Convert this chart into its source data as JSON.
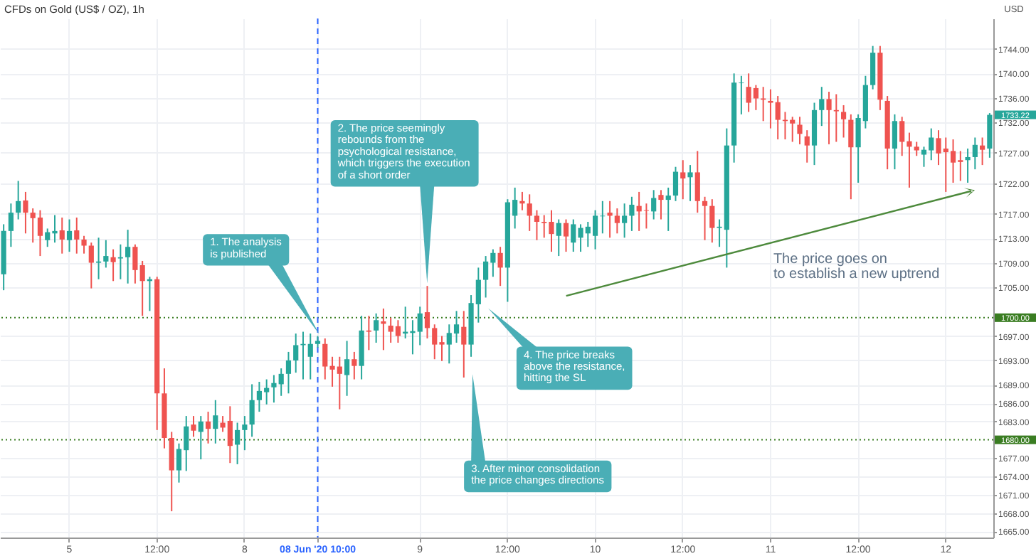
{
  "chart_data": {
    "type": "candlestick",
    "title": "CFDs on Gold (US$ / OZ), 1h",
    "ylabel": "USD",
    "categories": [
      null,
      null,
      null,
      null,
      null,
      null,
      null,
      null,
      null,
      "5",
      null,
      null,
      null,
      null,
      null,
      null,
      null,
      null,
      null,
      null,
      null,
      "12:00",
      null,
      null,
      null,
      null,
      null,
      null,
      null,
      null,
      null,
      null,
      null,
      "8",
      null,
      null,
      null,
      null,
      null,
      null,
      null,
      null,
      null,
      "08 Jun '20  10:00",
      null,
      null,
      null,
      null,
      null,
      null,
      null,
      null,
      null,
      null,
      null,
      null,
      null,
      "9",
      null,
      null,
      null,
      null,
      null,
      null,
      null,
      null,
      null,
      null,
      null,
      "12:00",
      null,
      null,
      null,
      null,
      null,
      null,
      null,
      null,
      null,
      null,
      null,
      "10",
      null,
      null,
      null,
      null,
      null,
      null,
      null,
      null,
      null,
      null,
      null,
      "12:00",
      null,
      null,
      null,
      null,
      null,
      null,
      null,
      null,
      null,
      null,
      null,
      "11",
      null,
      null,
      null,
      null,
      null,
      null,
      null,
      null,
      null,
      null,
      null,
      "12:00",
      null,
      null,
      null,
      null,
      null,
      null,
      null,
      null,
      null,
      null,
      null,
      "12",
      null,
      null,
      null,
      null,
      null,
      null
    ],
    "ohlc": [
      [
        1707.1,
        1715.3,
        1704.5,
        1714.2
      ],
      [
        1714.2,
        1718.7,
        1711.6,
        1717.2
      ],
      [
        1717.2,
        1722.4,
        1716.1,
        1719.1
      ],
      [
        1719.2,
        1720.6,
        1713.8,
        1717.2
      ],
      [
        1717.2,
        1717.9,
        1712.3,
        1716.3
      ],
      [
        1716.4,
        1717.6,
        1710.1,
        1713.4
      ],
      [
        1712.7,
        1714.6,
        1711.6,
        1714.0
      ],
      [
        1713.8,
        1716.8,
        1712.3,
        1714.2
      ],
      [
        1714.3,
        1716.4,
        1710.5,
        1712.8
      ],
      [
        1712.7,
        1716.1,
        1710.8,
        1714.2
      ],
      [
        1714.3,
        1716.4,
        1710.5,
        1712.8
      ],
      [
        1712.8,
        1713.4,
        1710.5,
        1711.8
      ],
      [
        1711.8,
        1712.3,
        1704.8,
        1709.0
      ],
      [
        1709.0,
        1713.1,
        1706.3,
        1709.2
      ],
      [
        1709.2,
        1712.7,
        1708.2,
        1710.1
      ],
      [
        1709.9,
        1711.2,
        1706.0,
        1709.1
      ],
      [
        1709.7,
        1712.0,
        1706.3,
        1709.9
      ],
      [
        1709.9,
        1714.4,
        1705.6,
        1711.6
      ],
      [
        1711.6,
        1712.0,
        1705.6,
        1707.8
      ],
      [
        1708.6,
        1709.3,
        1700.3,
        1706.0
      ],
      [
        1706.0,
        1706.7,
        1701.1,
        1706.3
      ],
      [
        1706.3,
        1706.7,
        1681.6,
        1687.6
      ],
      [
        1687.6,
        1691.7,
        1678.6,
        1680.3
      ],
      [
        1680.3,
        1681.3,
        1668.3,
        1675.0
      ],
      [
        1675.0,
        1679.4,
        1673.0,
        1678.5
      ],
      [
        1678.3,
        1683.9,
        1674.9,
        1682.2
      ],
      [
        1682.5,
        1683.9,
        1680.5,
        1681.5
      ],
      [
        1681.3,
        1683.9,
        1676.8,
        1683.0
      ],
      [
        1683.0,
        1684.6,
        1679.4,
        1681.8
      ],
      [
        1681.8,
        1686.5,
        1679.4,
        1684.0
      ],
      [
        1682.8,
        1683.9,
        1681.3,
        1682.0
      ],
      [
        1683.1,
        1685.5,
        1676.2,
        1679.0
      ],
      [
        1679.2,
        1682.8,
        1676.0,
        1681.6
      ],
      [
        1681.6,
        1683.9,
        1678.3,
        1682.5
      ],
      [
        1682.5,
        1689.1,
        1680.5,
        1686.5
      ],
      [
        1686.5,
        1689.5,
        1684.6,
        1688.0
      ],
      [
        1687.8,
        1689.9,
        1685.8,
        1688.5
      ],
      [
        1688.6,
        1690.6,
        1686.1,
        1689.3
      ],
      [
        1689.1,
        1691.7,
        1687.2,
        1690.8
      ],
      [
        1690.8,
        1694.4,
        1687.6,
        1693.0
      ],
      [
        1693.0,
        1697.4,
        1691.0,
        1695.5
      ],
      [
        1695.5,
        1697.7,
        1689.9,
        1695.7
      ],
      [
        1693.6,
        1697.4,
        1689.9,
        1695.7
      ],
      [
        1695.7,
        1697.0,
        1695.1,
        1696.2
      ],
      [
        1695.7,
        1696.6,
        1689.9,
        1692.0
      ],
      [
        1692.1,
        1693.6,
        1688.7,
        1691.5
      ],
      [
        1692.0,
        1693.6,
        1685.0,
        1690.8
      ],
      [
        1690.6,
        1696.2,
        1687.2,
        1693.2
      ],
      [
        1693.2,
        1694.4,
        1689.9,
        1692.1
      ],
      [
        1692.1,
        1700.3,
        1689.9,
        1697.9
      ],
      [
        1697.9,
        1700.3,
        1694.7,
        1697.7
      ],
      [
        1697.9,
        1700.7,
        1695.9,
        1699.6
      ],
      [
        1699.4,
        1701.5,
        1694.7,
        1699.0
      ],
      [
        1698.7,
        1700.0,
        1695.9,
        1697.7
      ],
      [
        1698.6,
        1699.6,
        1695.9,
        1697.0
      ],
      [
        1697.4,
        1701.8,
        1696.6,
        1697.7
      ],
      [
        1697.5,
        1699.6,
        1694.0,
        1697.8
      ],
      [
        1697.7,
        1701.8,
        1695.5,
        1700.7
      ],
      [
        1700.9,
        1705.2,
        1696.6,
        1698.3
      ],
      [
        1698.3,
        1698.9,
        1693.2,
        1695.6
      ],
      [
        1696.0,
        1697.0,
        1692.9,
        1695.6
      ],
      [
        1695.6,
        1698.9,
        1692.5,
        1697.5
      ],
      [
        1697.4,
        1701.1,
        1695.9,
        1698.9
      ],
      [
        1698.5,
        1701.1,
        1690.2,
        1695.6
      ],
      [
        1695.6,
        1703.7,
        1693.6,
        1702.4
      ],
      [
        1702.2,
        1708.2,
        1699.2,
        1706.2
      ],
      [
        1706.2,
        1710.1,
        1703.3,
        1709.2
      ],
      [
        1709.0,
        1711.2,
        1706.7,
        1710.6
      ],
      [
        1710.6,
        1711.6,
        1705.2,
        1708.2
      ],
      [
        1708.2,
        1719.4,
        1702.6,
        1718.9
      ],
      [
        1716.7,
        1721.3,
        1714.6,
        1719.3
      ],
      [
        1719.1,
        1720.6,
        1717.6,
        1718.7
      ],
      [
        1718.7,
        1720.2,
        1714.2,
        1716.7
      ],
      [
        1716.7,
        1717.6,
        1712.7,
        1715.7
      ],
      [
        1715.7,
        1716.8,
        1713.1,
        1715.5
      ],
      [
        1715.7,
        1717.6,
        1710.8,
        1713.7
      ],
      [
        1713.4,
        1716.1,
        1710.1,
        1715.5
      ],
      [
        1715.5,
        1716.1,
        1710.8,
        1713.3
      ],
      [
        1712.3,
        1716.1,
        1710.8,
        1715.3
      ],
      [
        1713.1,
        1715.3,
        1710.8,
        1714.7
      ],
      [
        1713.8,
        1715.7,
        1711.6,
        1714.9
      ],
      [
        1713.4,
        1717.6,
        1711.2,
        1716.7
      ],
      [
        1716.6,
        1719.1,
        1713.8,
        1716.7
      ],
      [
        1717.2,
        1719.1,
        1713.1,
        1716.7
      ],
      [
        1716.7,
        1717.9,
        1713.8,
        1715.5
      ],
      [
        1715.5,
        1718.7,
        1713.1,
        1716.7
      ],
      [
        1716.7,
        1719.8,
        1714.2,
        1718.5
      ],
      [
        1718.3,
        1720.6,
        1714.2,
        1717.4
      ],
      [
        1717.6,
        1718.7,
        1714.6,
        1717.5
      ],
      [
        1717.4,
        1720.9,
        1716.1,
        1719.6
      ],
      [
        1720.1,
        1720.9,
        1716.1,
        1719.3
      ],
      [
        1719.3,
        1721.3,
        1714.2,
        1720.0
      ],
      [
        1720.0,
        1724.7,
        1719.1,
        1723.9
      ],
      [
        1723.8,
        1725.8,
        1719.4,
        1722.8
      ],
      [
        1723.0,
        1725.0,
        1719.1,
        1723.8
      ],
      [
        1723.8,
        1727.3,
        1717.2,
        1719.1
      ],
      [
        1719.1,
        1719.8,
        1712.7,
        1718.3
      ],
      [
        1718.3,
        1719.4,
        1712.3,
        1714.7
      ],
      [
        1714.7,
        1716.1,
        1711.6,
        1714.9
      ],
      [
        1714.4,
        1731.0,
        1708.2,
        1728.2
      ],
      [
        1728.2,
        1740.0,
        1725.4,
        1738.5
      ],
      [
        1738.4,
        1739.6,
        1733.3,
        1738.5
      ],
      [
        1737.8,
        1740.0,
        1733.7,
        1735.2
      ],
      [
        1737.6,
        1738.1,
        1734.0,
        1735.9
      ],
      [
        1735.9,
        1737.8,
        1732.2,
        1735.7
      ],
      [
        1735.5,
        1737.4,
        1731.0,
        1735.2
      ],
      [
        1735.3,
        1736.3,
        1729.2,
        1732.4
      ],
      [
        1732.4,
        1733.7,
        1729.2,
        1732.2
      ],
      [
        1732.4,
        1732.9,
        1728.8,
        1731.8
      ],
      [
        1731.6,
        1732.9,
        1728.4,
        1730.1
      ],
      [
        1729.7,
        1730.7,
        1725.4,
        1728.2
      ],
      [
        1728.2,
        1735.2,
        1725.0,
        1734.0
      ],
      [
        1734.0,
        1737.8,
        1731.4,
        1735.8
      ],
      [
        1735.8,
        1737.0,
        1728.4,
        1734.0
      ],
      [
        1734.0,
        1736.6,
        1728.8,
        1733.8
      ],
      [
        1733.7,
        1734.8,
        1729.5,
        1732.5
      ],
      [
        1732.4,
        1733.3,
        1719.4,
        1727.9
      ],
      [
        1727.9,
        1733.3,
        1722.1,
        1732.7
      ],
      [
        1732.2,
        1739.6,
        1731.0,
        1738.1
      ],
      [
        1738.1,
        1744.5,
        1737.4,
        1743.4
      ],
      [
        1743.4,
        1744.5,
        1734.0,
        1735.7
      ],
      [
        1735.5,
        1736.3,
        1724.3,
        1727.7
      ],
      [
        1727.7,
        1733.3,
        1724.3,
        1732.2
      ],
      [
        1732.2,
        1732.9,
        1726.5,
        1728.8
      ],
      [
        1728.9,
        1730.3,
        1721.3,
        1728.0
      ],
      [
        1728.0,
        1728.8,
        1726.5,
        1727.4
      ],
      [
        1726.7,
        1728.0,
        1724.7,
        1727.5
      ],
      [
        1727.4,
        1731.0,
        1725.8,
        1729.5
      ],
      [
        1729.4,
        1730.7,
        1725.0,
        1726.9
      ],
      [
        1727.7,
        1729.5,
        1720.6,
        1727.1
      ],
      [
        1727.3,
        1729.2,
        1722.1,
        1725.4
      ],
      [
        1725.8,
        1727.3,
        1722.4,
        1725.5
      ],
      [
        1725.8,
        1727.7,
        1722.1,
        1726.3
      ],
      [
        1726.3,
        1729.5,
        1724.3,
        1728.3
      ],
      [
        1728.2,
        1729.5,
        1725.0,
        1727.5
      ],
      [
        1727.7,
        1733.5,
        1726.2,
        1733.22
      ]
    ],
    "colors": [
      "#26a69a",
      "#26a69a",
      "#26a69a",
      "#ef5350",
      "#ef5350",
      "#ef5350",
      "#26a69a",
      "#26a69a",
      "#ef5350",
      "#26a69a",
      "#ef5350",
      "#ef5350",
      "#ef5350",
      "#26a69a",
      "#26a69a",
      "#ef5350",
      "#26a69a",
      "#26a69a",
      "#ef5350",
      "#ef5350",
      "#26a69a",
      "#ef5350",
      "#ef5350",
      "#ef5350",
      "#26a69a",
      "#26a69a",
      "#ef5350",
      "#26a69a",
      "#ef5350",
      "#26a69a",
      "#ef5350",
      "#ef5350",
      "#26a69a",
      "#26a69a",
      "#26a69a",
      "#26a69a",
      "#26a69a",
      "#26a69a",
      "#26a69a",
      "#26a69a",
      "#26a69a",
      "#26a69a",
      "#26a69a",
      "#26a69a",
      "#ef5350",
      "#ef5350",
      "#ef5350",
      "#26a69a",
      "#ef5350",
      "#26a69a",
      "#ef5350",
      "#26a69a",
      "#ef5350",
      "#ef5350",
      "#ef5350",
      "#26a69a",
      "#26a69a",
      "#26a69a",
      "#ef5350",
      "#ef5350",
      "#ef5350",
      "#26a69a",
      "#26a69a",
      "#ef5350",
      "#26a69a",
      "#26a69a",
      "#26a69a",
      "#26a69a",
      "#ef5350",
      "#26a69a",
      "#26a69a",
      "#ef5350",
      "#ef5350",
      "#ef5350",
      "#ef5350",
      "#ef5350",
      "#26a69a",
      "#ef5350",
      "#26a69a",
      "#26a69a",
      "#26a69a",
      "#26a69a",
      "#26a69a",
      "#ef5350",
      "#ef5350",
      "#26a69a",
      "#26a69a",
      "#ef5350",
      "#ef5350",
      "#26a69a",
      "#ef5350",
      "#26a69a",
      "#26a69a",
      "#ef5350",
      "#26a69a",
      "#ef5350",
      "#ef5350",
      "#ef5350",
      "#26a69a",
      "#26a69a",
      "#26a69a",
      "#26a69a",
      "#ef5350",
      "#ef5350",
      "#ef5350",
      "#ef5350",
      "#ef5350",
      "#ef5350",
      "#ef5350",
      "#ef5350",
      "#ef5350",
      "#26a69a",
      "#26a69a",
      "#ef5350",
      "#ef5350",
      "#ef5350",
      "#ef5350",
      "#26a69a",
      "#26a69a",
      "#26a69a",
      "#ef5350",
      "#ef5350",
      "#26a69a",
      "#ef5350",
      "#ef5350",
      "#ef5350",
      "#26a69a",
      "#26a69a",
      "#ef5350",
      "#ef5350",
      "#ef5350",
      "#ef5350",
      "#26a69a",
      "#26a69a",
      "#ef5350",
      "#26a69a"
    ],
    "ylim": [
      1664,
      1749
    ],
    "yticks": [
      {
        "value": 1665,
        "label": "1665.00"
      },
      {
        "value": 1668,
        "label": "1668.00"
      },
      {
        "value": 1671,
        "label": "1671.00"
      },
      {
        "value": 1674,
        "label": "1674.00"
      },
      {
        "value": 1677,
        "label": "1677.00"
      },
      {
        "value": 1683,
        "label": "1683.00"
      },
      {
        "value": 1686,
        "label": "1686.00"
      },
      {
        "value": 1689,
        "label": "1689.00"
      },
      {
        "value": 1693,
        "label": "1693.00"
      },
      {
        "value": 1697,
        "label": "1697.00"
      },
      {
        "value": 1705,
        "label": "1705.00"
      },
      {
        "value": 1709,
        "label": "1709.00"
      },
      {
        "value": 1713,
        "label": "1713.00"
      },
      {
        "value": 1717,
        "label": "1717.00"
      },
      {
        "value": 1722,
        "label": "1722.00"
      },
      {
        "value": 1727,
        "label": "1727.00"
      },
      {
        "value": 1732,
        "label": "1732.00"
      },
      {
        "value": 1736,
        "label": "1736.00"
      },
      {
        "value": 1740,
        "label": "1740.00"
      },
      {
        "value": 1744,
        "label": "1744.00"
      }
    ],
    "grid": true,
    "ref_lines": [
      {
        "axis": "y",
        "value": 1700,
        "label": "1700.00",
        "color": "#3a7d22",
        "line_style": "dotted"
      },
      {
        "axis": "y",
        "value": 1680,
        "label": "1680.00",
        "color": "#3a7d22",
        "line_style": "dotted"
      },
      {
        "axis": "x",
        "value": "08 Jun '20  10:00",
        "color": "#2962ff",
        "line_style": "dashed"
      }
    ],
    "annotations": [
      "1. The analysis\nis published",
      "2. The price seemingly\nrebounds from the\npsychological resistance,\nwhich triggers the execution\nof a short order",
      "3. After minor consolidation\nthe price changes directions",
      "4. The price breaks\nabove the resistance,\nhitting the SL",
      "The price goes on\nto establish a new uptrend",
      "1733.22"
    ]
  }
}
